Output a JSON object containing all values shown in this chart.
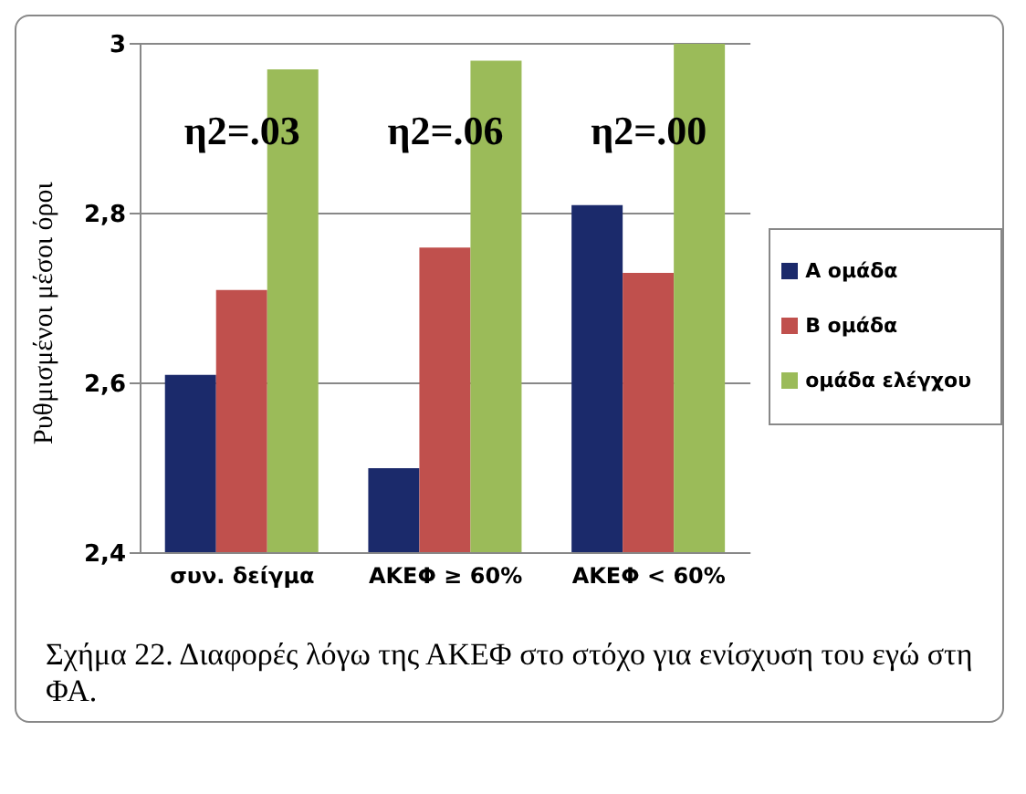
{
  "chart_data": {
    "type": "bar",
    "ylabel": "Ρυθμισμένοι μέσοι όροι",
    "categories": [
      "συν. δείγμα",
      "ΑΚΕΦ ≥ 60%",
      "ΑΚΕΦ < 60%"
    ],
    "series": [
      {
        "name": "Α ομάδα",
        "color": "#1b2a6b",
        "values": [
          2.61,
          2.5,
          2.81
        ]
      },
      {
        "name": "Β ομάδα",
        "color": "#c0504d",
        "values": [
          2.71,
          2.76,
          2.73
        ]
      },
      {
        "name": "ομάδα ελέγχου",
        "color": "#9bbb59",
        "values": [
          2.97,
          2.98,
          3.0
        ]
      }
    ],
    "ylim": [
      2.4,
      3
    ],
    "yticks": [
      {
        "value": 2.4,
        "label": "2,4"
      },
      {
        "value": 2.6,
        "label": "2,6"
      },
      {
        "value": 2.8,
        "label": "2,8"
      },
      3
    ],
    "grid": "y",
    "legend": "right",
    "annotations": [
      "η2=.03",
      "η2=.06",
      "η2=.00",
      "Σχήμα 22. Διαφορές λόγω της ΑΚΕΦ στο στόχο για ενίσχυση του εγώ στη ΦΑ."
    ]
  }
}
